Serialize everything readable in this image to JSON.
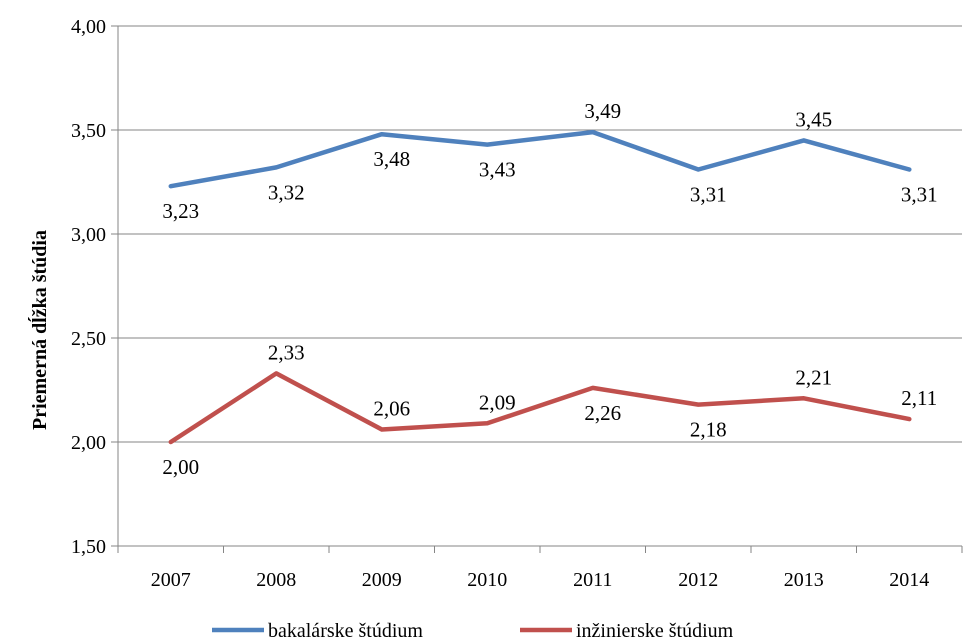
{
  "chart_data": {
    "type": "line",
    "title": "",
    "xlabel": "",
    "ylabel": "Priemerná dĺžka štúdia",
    "ylim": [
      1.5,
      4.0
    ],
    "yticks": [
      "1,50",
      "2,00",
      "2,50",
      "3,00",
      "3,50",
      "4,00"
    ],
    "categories": [
      "2007",
      "2008",
      "2009",
      "2010",
      "2011",
      "2012",
      "2013",
      "2014"
    ],
    "grid": "horizontal",
    "legend": "bottom",
    "series": [
      {
        "name": "bakalárske štúdium",
        "color": "#4f81bd",
        "values": [
          3.23,
          3.32,
          3.48,
          3.43,
          3.49,
          3.31,
          3.45,
          3.31
        ],
        "labels": [
          "3,23",
          "3,32",
          "3,48",
          "3,43",
          "3,49",
          "3,31",
          "3,45",
          "3,31"
        ]
      },
      {
        "name": "inžinierske štúdium",
        "color": "#c0504d",
        "values": [
          2.0,
          2.33,
          2.06,
          2.09,
          2.26,
          2.18,
          2.21,
          2.11
        ],
        "labels": [
          "2,00",
          "2,33",
          "2,06",
          "2,09",
          "2,26",
          "2,18",
          "2,21",
          "2,11"
        ]
      }
    ]
  }
}
